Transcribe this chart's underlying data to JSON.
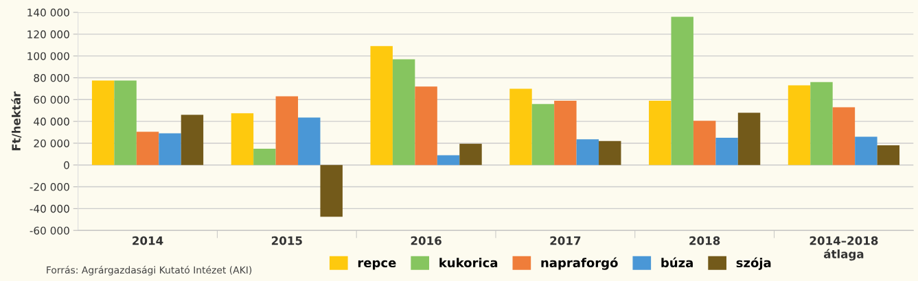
{
  "chart_data": {
    "type": "bar",
    "ylabel": "Ft/hektár",
    "categories": [
      "2014",
      "2015",
      "2016",
      "2017",
      "2018",
      "2014–2018\nátlaga"
    ],
    "series": [
      {
        "name": "repce",
        "color": "#fec90e",
        "values": [
          77500,
          47500,
          109000,
          70000,
          59000,
          73000
        ]
      },
      {
        "name": "kukorica",
        "color": "#86c55f",
        "values": [
          77500,
          15000,
          97000,
          56000,
          136000,
          76000
        ]
      },
      {
        "name": "napraforgó",
        "color": "#ef7d3a",
        "values": [
          30500,
          63000,
          72000,
          59000,
          40500,
          53000
        ]
      },
      {
        "name": "búza",
        "color": "#4a97d6",
        "values": [
          29000,
          43500,
          9000,
          23500,
          25000,
          26000
        ]
      },
      {
        "name": "szója",
        "color": "#735a1a",
        "values": [
          46000,
          -47500,
          19500,
          22000,
          48000,
          18000
        ]
      }
    ],
    "ylim": [
      -60000,
      140000
    ],
    "yticks": [
      {
        "value": -60000,
        "label": "-60 000"
      },
      {
        "value": -40000,
        "label": "-40 000"
      },
      {
        "value": -20000,
        "label": "-20 000"
      },
      0,
      {
        "value": 20000,
        "label": "20 000"
      },
      {
        "value": 40000,
        "label": "40 000"
      },
      {
        "value": 60000,
        "label": "60 000"
      },
      {
        "value": 80000,
        "label": "80 000"
      },
      {
        "value": 100000,
        "label": "100 000"
      },
      {
        "value": 120000,
        "label": "120 000"
      },
      {
        "value": 140000,
        "label": "140 000"
      }
    ],
    "grid": "y",
    "legend": "bottom",
    "annotations": [
      "Forrás: Agrárgazdasági Kutató Intézet (AKI)"
    ]
  }
}
